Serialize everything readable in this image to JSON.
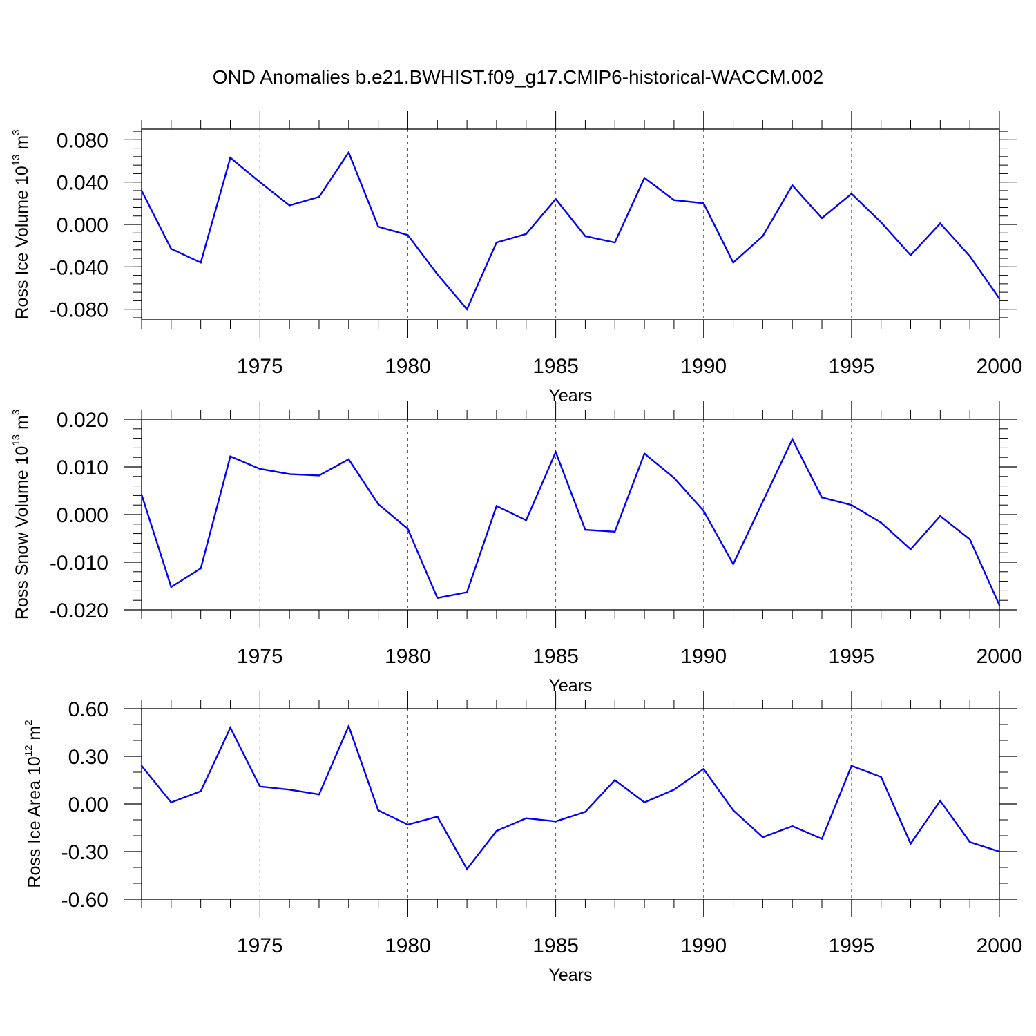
{
  "figure_title": "OND Anomalies b.e21.BWHIST.f09_g17.CMIP6-historical-WACCM.002",
  "colors": {
    "line": "#0000ff",
    "axis": "#000000",
    "grid": "#555555"
  },
  "chart_data": [
    {
      "type": "line",
      "title": "",
      "ylabel_main": "Ross Ice Volume 10",
      "ylabel_exp": "13",
      "ylabel_unit": " m",
      "ylabel_unit_exp": "3",
      "xlabel": "Years",
      "xlim": [
        1971,
        2000
      ],
      "ylim": [
        -0.09,
        0.09
      ],
      "x_ticks": [
        1975,
        1980,
        1985,
        1990,
        1995,
        2000
      ],
      "x_tick_labels": [
        "1975",
        "1980",
        "1985",
        "1990",
        "1995",
        "2000"
      ],
      "y_ticks": [
        0.08,
        0.04,
        0.0,
        -0.04,
        -0.08
      ],
      "y_tick_labels": [
        "0.080",
        "0.040",
        "0.000",
        "-0.040",
        "-0.080"
      ],
      "y_minor_step": 0.008,
      "grid": "vertical dashed at major x ticks",
      "x": [
        1971,
        1972,
        1973,
        1974,
        1975,
        1976,
        1977,
        1978,
        1979,
        1980,
        1981,
        1982,
        1983,
        1984,
        1985,
        1986,
        1987,
        1988,
        1989,
        1990,
        1991,
        1992,
        1993,
        1994,
        1995,
        1996,
        1997,
        1998,
        1999,
        2000
      ],
      "series": [
        {
          "name": "Ross Ice Volume",
          "values": [
            0.032,
            -0.023,
            -0.036,
            0.063,
            0.04,
            0.018,
            0.026,
            0.068,
            -0.002,
            -0.01,
            -0.047,
            -0.08,
            -0.017,
            -0.009,
            0.024,
            -0.011,
            -0.017,
            0.044,
            0.023,
            0.02,
            -0.036,
            -0.011,
            0.037,
            0.006,
            0.029,
            0.002,
            -0.029,
            0.001,
            -0.03,
            -0.07
          ]
        }
      ]
    },
    {
      "type": "line",
      "title": "",
      "ylabel_main": "Ross Snow Volume 10",
      "ylabel_exp": "13",
      "ylabel_unit": " m",
      "ylabel_unit_exp": "3",
      "xlabel": "Years",
      "xlim": [
        1971,
        2000
      ],
      "ylim": [
        -0.02,
        0.02
      ],
      "x_ticks": [
        1975,
        1980,
        1985,
        1990,
        1995,
        2000
      ],
      "x_tick_labels": [
        "1975",
        "1980",
        "1985",
        "1990",
        "1995",
        "2000"
      ],
      "y_ticks": [
        0.02,
        0.01,
        0.0,
        -0.01,
        -0.02
      ],
      "y_tick_labels": [
        "0.020",
        "0.010",
        "0.000",
        "-0.010",
        "-0.020"
      ],
      "y_minor_step": 0.002,
      "grid": "vertical dashed at major x ticks",
      "x": [
        1971,
        1972,
        1973,
        1974,
        1975,
        1976,
        1977,
        1978,
        1979,
        1980,
        1981,
        1982,
        1983,
        1984,
        1985,
        1986,
        1987,
        1988,
        1989,
        1990,
        1991,
        1992,
        1993,
        1994,
        1995,
        1996,
        1997,
        1998,
        1999,
        2000
      ],
      "series": [
        {
          "name": "Ross Snow Volume",
          "values": [
            0.0042,
            -0.0152,
            -0.0113,
            0.0122,
            0.0096,
            0.0085,
            0.0082,
            0.0116,
            0.0022,
            -0.003,
            -0.0175,
            -0.0163,
            0.0018,
            -0.0012,
            0.0131,
            -0.0032,
            -0.0036,
            0.0128,
            0.0077,
            0.0008,
            -0.0104,
            0.0027,
            0.0158,
            0.0036,
            0.002,
            -0.0017,
            -0.0073,
            -0.0003,
            -0.0052,
            -0.019
          ]
        }
      ]
    },
    {
      "type": "line",
      "title": "",
      "ylabel_main": "Ross Ice Area 10",
      "ylabel_exp": "12",
      "ylabel_unit": " m",
      "ylabel_unit_exp": "2",
      "xlabel": "Years",
      "xlim": [
        1971,
        2000
      ],
      "ylim": [
        -0.6,
        0.6
      ],
      "x_ticks": [
        1975,
        1980,
        1985,
        1990,
        1995,
        2000
      ],
      "x_tick_labels": [
        "1975",
        "1980",
        "1985",
        "1990",
        "1995",
        "2000"
      ],
      "y_ticks": [
        0.6,
        0.3,
        0.0,
        -0.3,
        -0.6
      ],
      "y_tick_labels": [
        "0.60",
        "0.30",
        "0.00",
        "-0.30",
        "-0.60"
      ],
      "y_minor_step": 0.1,
      "grid": "vertical dashed at major x ticks",
      "x": [
        1971,
        1972,
        1973,
        1974,
        1975,
        1976,
        1977,
        1978,
        1979,
        1980,
        1981,
        1982,
        1983,
        1984,
        1985,
        1986,
        1987,
        1988,
        1989,
        1990,
        1991,
        1992,
        1993,
        1994,
        1995,
        1996,
        1997,
        1998,
        1999,
        2000
      ],
      "series": [
        {
          "name": "Ross Ice Area",
          "values": [
            0.24,
            0.01,
            0.08,
            0.48,
            0.11,
            0.09,
            0.06,
            0.49,
            -0.04,
            -0.13,
            -0.08,
            -0.41,
            -0.17,
            -0.09,
            -0.11,
            -0.05,
            0.15,
            0.01,
            0.09,
            0.22,
            -0.04,
            -0.21,
            -0.14,
            -0.22,
            0.24,
            0.17,
            -0.25,
            0.02,
            -0.24,
            -0.3
          ]
        }
      ]
    }
  ]
}
